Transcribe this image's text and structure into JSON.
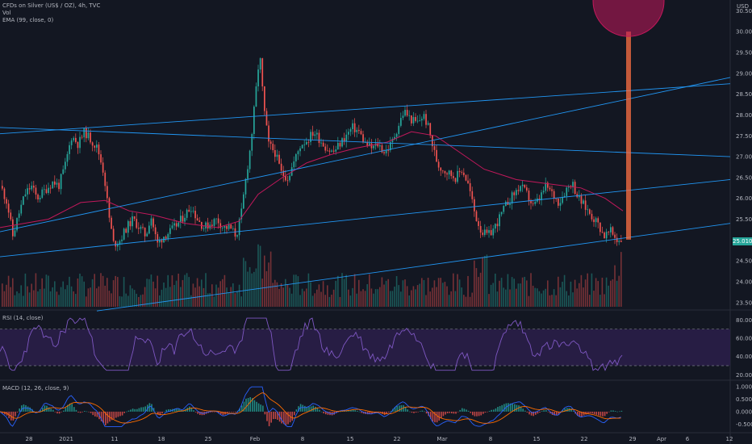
{
  "header": {
    "main_title": "CFDs on Silver (US$ / OZ), 4h, TVC",
    "vol_label": "Vol",
    "ema_label": "EMA (99, close, 0)",
    "rsi_label": "RSI (14, close)",
    "macd_label": "MACD (12, 26, close, 9)"
  },
  "price_axis": {
    "currency": "USD",
    "ticks": [
      "30.500",
      "30.000",
      "29.500",
      "29.000",
      "28.500",
      "28.000",
      "27.500",
      "27.000",
      "26.500",
      "26.000",
      "25.500",
      "25.000",
      "24.500",
      "24.000",
      "23.500"
    ],
    "current_price": "25.010"
  },
  "rsi_axis": {
    "ticks": [
      "80.00",
      "60.00",
      "40.00",
      "20.00"
    ]
  },
  "macd_axis": {
    "ticks": [
      "1.000",
      "0.500",
      "0.000",
      "-0.500"
    ]
  },
  "time_axis": {
    "ticks": [
      "28",
      "2021",
      "11",
      "18",
      "25",
      "Feb",
      "8",
      "15",
      "22",
      "Mar",
      "8",
      "15",
      "22",
      "29",
      "Apr",
      "6",
      "12"
    ]
  },
  "colors": {
    "background": "#131722",
    "bull": "#26a69a",
    "bear": "#ef5350",
    "ema": "#c2185b",
    "trendline": "#2196f3",
    "rsi": "#7e57c2",
    "rsi_band": "#2a1e48",
    "macd_line": "#2962ff",
    "signal_line": "#ff6d00",
    "target_circle": "#c2185b",
    "target_bar": "#ff7043"
  },
  "chart_data": [
    {
      "type": "candlestick",
      "title": "CFDs on Silver (US$ / OZ), 4h, TVC",
      "ylim": [
        23.4,
        30.7
      ],
      "y_scale": "linear",
      "last_close": 25.01,
      "x_dates": [
        "28",
        "2021",
        "11",
        "18",
        "25",
        "Feb",
        "8",
        "15",
        "22",
        "Mar",
        "8",
        "15",
        "22",
        "29",
        "Apr",
        "6",
        "12"
      ],
      "close_path": [
        {
          "x": 0,
          "close": 26.3
        },
        {
          "x": 8,
          "close": 25.9
        },
        {
          "x": 15,
          "close": 25.1
        },
        {
          "x": 22,
          "close": 25.6
        },
        {
          "x": 30,
          "close": 26.1
        },
        {
          "x": 38,
          "close": 26.3
        },
        {
          "x": 45,
          "close": 26.0
        },
        {
          "x": 55,
          "close": 26.2
        },
        {
          "x": 65,
          "close": 26.4
        },
        {
          "x": 72,
          "close": 26.3
        },
        {
          "x": 80,
          "close": 26.8
        },
        {
          "x": 88,
          "close": 27.5
        },
        {
          "x": 96,
          "close": 27.3
        },
        {
          "x": 104,
          "close": 27.6
        },
        {
          "x": 112,
          "close": 27.4
        },
        {
          "x": 120,
          "close": 27.2
        },
        {
          "x": 128,
          "close": 26.6
        },
        {
          "x": 134,
          "close": 25.6
        },
        {
          "x": 140,
          "close": 24.9
        },
        {
          "x": 148,
          "close": 25.0
        },
        {
          "x": 156,
          "close": 25.3
        },
        {
          "x": 164,
          "close": 25.5
        },
        {
          "x": 172,
          "close": 25.3
        },
        {
          "x": 180,
          "close": 25.1
        },
        {
          "x": 186,
          "close": 25.6
        },
        {
          "x": 194,
          "close": 24.9
        },
        {
          "x": 202,
          "close": 25.1
        },
        {
          "x": 210,
          "close": 25.2
        },
        {
          "x": 220,
          "close": 25.4
        },
        {
          "x": 228,
          "close": 25.6
        },
        {
          "x": 236,
          "close": 25.8
        },
        {
          "x": 244,
          "close": 25.5
        },
        {
          "x": 252,
          "close": 25.3
        },
        {
          "x": 260,
          "close": 25.4
        },
        {
          "x": 268,
          "close": 25.5
        },
        {
          "x": 276,
          "close": 25.3
        },
        {
          "x": 284,
          "close": 25.3
        },
        {
          "x": 292,
          "close": 25.1
        },
        {
          "x": 298,
          "close": 25.6
        },
        {
          "x": 304,
          "close": 26.5
        },
        {
          "x": 310,
          "close": 27.3
        },
        {
          "x": 316,
          "close": 28.5
        },
        {
          "x": 321,
          "close": 29.5
        },
        {
          "x": 326,
          "close": 28.2
        },
        {
          "x": 332,
          "close": 27.3
        },
        {
          "x": 340,
          "close": 27.1
        },
        {
          "x": 348,
          "close": 26.6
        },
        {
          "x": 356,
          "close": 26.5
        },
        {
          "x": 364,
          "close": 26.9
        },
        {
          "x": 372,
          "close": 27.3
        },
        {
          "x": 380,
          "close": 27.4
        },
        {
          "x": 388,
          "close": 27.6
        },
        {
          "x": 396,
          "close": 27.4
        },
        {
          "x": 404,
          "close": 27.2
        },
        {
          "x": 412,
          "close": 27.1
        },
        {
          "x": 420,
          "close": 27.3
        },
        {
          "x": 428,
          "close": 27.5
        },
        {
          "x": 436,
          "close": 27.7
        },
        {
          "x": 444,
          "close": 27.6
        },
        {
          "x": 452,
          "close": 27.3
        },
        {
          "x": 460,
          "close": 27.2
        },
        {
          "x": 468,
          "close": 27.3
        },
        {
          "x": 476,
          "close": 27.1
        },
        {
          "x": 484,
          "close": 27.3
        },
        {
          "x": 492,
          "close": 27.7
        },
        {
          "x": 500,
          "close": 28.1
        },
        {
          "x": 508,
          "close": 27.9
        },
        {
          "x": 516,
          "close": 27.8
        },
        {
          "x": 524,
          "close": 28.0
        },
        {
          "x": 530,
          "close": 27.7
        },
        {
          "x": 536,
          "close": 27.2
        },
        {
          "x": 542,
          "close": 26.8
        },
        {
          "x": 548,
          "close": 26.7
        },
        {
          "x": 556,
          "close": 26.6
        },
        {
          "x": 564,
          "close": 26.5
        },
        {
          "x": 572,
          "close": 26.7
        },
        {
          "x": 580,
          "close": 26.3
        },
        {
          "x": 588,
          "close": 25.6
        },
        {
          "x": 596,
          "close": 25.2
        },
        {
          "x": 604,
          "close": 25.1
        },
        {
          "x": 612,
          "close": 25.3
        },
        {
          "x": 620,
          "close": 25.6
        },
        {
          "x": 628,
          "close": 25.9
        },
        {
          "x": 636,
          "close": 26.1
        },
        {
          "x": 644,
          "close": 26.3
        },
        {
          "x": 652,
          "close": 26.1
        },
        {
          "x": 660,
          "close": 25.8
        },
        {
          "x": 668,
          "close": 26.0
        },
        {
          "x": 676,
          "close": 26.3
        },
        {
          "x": 684,
          "close": 26.1
        },
        {
          "x": 692,
          "close": 25.9
        },
        {
          "x": 700,
          "close": 26.2
        },
        {
          "x": 708,
          "close": 26.4
        },
        {
          "x": 716,
          "close": 26.0
        },
        {
          "x": 724,
          "close": 25.8
        },
        {
          "x": 732,
          "close": 25.6
        },
        {
          "x": 740,
          "close": 25.4
        },
        {
          "x": 748,
          "close": 25.1
        },
        {
          "x": 756,
          "close": 25.2
        },
        {
          "x": 764,
          "close": 25.0
        },
        {
          "x": 772,
          "close": 25.01
        }
      ],
      "ema_99": [
        {
          "x": 0,
          "v": 25.3
        },
        {
          "x": 60,
          "v": 25.5
        },
        {
          "x": 100,
          "v": 25.9
        },
        {
          "x": 130,
          "v": 25.95
        },
        {
          "x": 160,
          "v": 25.7
        },
        {
          "x": 190,
          "v": 25.6
        },
        {
          "x": 230,
          "v": 25.4
        },
        {
          "x": 270,
          "v": 25.3
        },
        {
          "x": 296,
          "v": 25.45
        },
        {
          "x": 320,
          "v": 26.1
        },
        {
          "x": 350,
          "v": 26.5
        },
        {
          "x": 380,
          "v": 26.85
        },
        {
          "x": 410,
          "v": 27.05
        },
        {
          "x": 440,
          "v": 27.2
        },
        {
          "x": 480,
          "v": 27.35
        },
        {
          "x": 510,
          "v": 27.6
        },
        {
          "x": 540,
          "v": 27.5
        },
        {
          "x": 570,
          "v": 27.1
        },
        {
          "x": 600,
          "v": 26.7
        },
        {
          "x": 640,
          "v": 26.45
        },
        {
          "x": 680,
          "v": 26.35
        },
        {
          "x": 720,
          "v": 26.25
        },
        {
          "x": 750,
          "v": 26.0
        },
        {
          "x": 772,
          "v": 25.7
        }
      ],
      "trendlines": [
        {
          "p1": {
            "x": 0,
            "v": 25.2
          },
          "p2": {
            "x": 905,
            "v": 28.9
          }
        },
        {
          "p1": {
            "x": 0,
            "v": 27.7
          },
          "p2": {
            "x": 905,
            "v": 27.0
          }
        },
        {
          "p1": {
            "x": 0,
            "v": 24.6
          },
          "p2": {
            "x": 905,
            "v": 26.45
          }
        },
        {
          "p1": {
            "x": 120,
            "v": 23.3
          },
          "p2": {
            "x": 905,
            "v": 25.4
          }
        },
        {
          "p1": {
            "x": 0,
            "v": 27.55
          },
          "p2": {
            "x": 905,
            "v": 28.75
          }
        }
      ],
      "projection": {
        "from": {
          "x": 772,
          "v": 25.01
        },
        "to": {
          "x": 778,
          "v": 30.0
        },
        "target": "circle above 30.000"
      }
    },
    {
      "type": "area",
      "title": "RSI (14, close)",
      "ylim": [
        15,
        90
      ],
      "upper_band": 70,
      "lower_band": 30,
      "ticks": [
        80,
        60,
        40,
        20
      ]
    },
    {
      "type": "line",
      "title": "MACD (12, 26, close, 9)",
      "ylim": [
        -0.75,
        1.2
      ],
      "ticks": [
        1.0,
        0.5,
        0.0,
        -0.5
      ],
      "series": []
    }
  ]
}
